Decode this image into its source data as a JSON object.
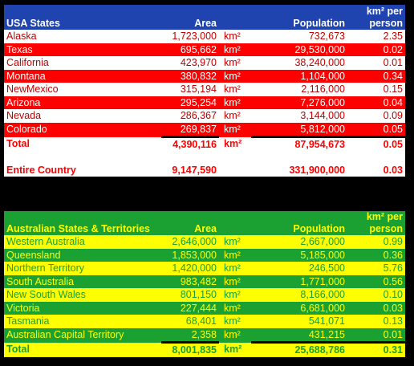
{
  "usa": {
    "header": {
      "name": "USA States",
      "area": "Area",
      "population": "Population",
      "km_line1": "km² per",
      "km_line2": "person"
    },
    "rows": [
      {
        "name": "Alaska",
        "area": "1,723,000",
        "unit": "km²",
        "population": "732,673",
        "km": "2.35",
        "style": "w"
      },
      {
        "name": "Texas",
        "area": "695,662",
        "unit": "km²",
        "population": "29,530,000",
        "km": "0.02",
        "style": "r"
      },
      {
        "name": "California",
        "area": "423,970",
        "unit": "km²",
        "population": "38,240,000",
        "km": "0.01",
        "style": "w"
      },
      {
        "name": "Montana",
        "area": "380,832",
        "unit": "km²",
        "population": "1,104,000",
        "km": "0.34",
        "style": "r"
      },
      {
        "name": "NewMexico",
        "area": "315,194",
        "unit": "km²",
        "population": "2,116,000",
        "km": "0.15",
        "style": "w"
      },
      {
        "name": "Arizona",
        "area": "295,254",
        "unit": "km²",
        "population": "7,276,000",
        "km": "0.04",
        "style": "r"
      },
      {
        "name": "Nevada",
        "area": "286,367",
        "unit": "km²",
        "population": "3,144,000",
        "km": "0.09",
        "style": "w"
      },
      {
        "name": "Colorado",
        "area": "269,837",
        "unit": "km²",
        "population": "5,812,000",
        "km": "0.05",
        "style": "r"
      }
    ],
    "total": {
      "name": "Total",
      "area": "4,390,116",
      "unit": "km²",
      "population": "87,954,673",
      "km": "0.05"
    },
    "country": {
      "name": "Entire Country",
      "area": "9,147,590",
      "population": "331,900,000",
      "km": "0.03"
    }
  },
  "aus": {
    "header": {
      "name": "Australian States & Territories",
      "area": "Area",
      "population": "Population",
      "km_line1": "km² per",
      "km_line2": "person"
    },
    "rows": [
      {
        "name": "Western Australia",
        "area": "2,646,000",
        "unit": "km²",
        "population": "2,667,000",
        "km": "0.99",
        "style": "y"
      },
      {
        "name": "Queensland",
        "area": "1,853,000",
        "unit": "km²",
        "population": "5,185,000",
        "km": "0.36",
        "style": "g"
      },
      {
        "name": "Northern Territory",
        "area": "1,420,000",
        "unit": "km²",
        "population": "246,500",
        "km": "5.76",
        "style": "y"
      },
      {
        "name": "South Australia",
        "area": "983,482",
        "unit": "km²",
        "population": "1,771,000",
        "km": "0.56",
        "style": "g"
      },
      {
        "name": "New South Wales",
        "area": "801,150",
        "unit": "km²",
        "population": "8,166,000",
        "km": "0.10",
        "style": "y"
      },
      {
        "name": "Victoria",
        "area": "227,444",
        "unit": "km²",
        "population": "6,681,000",
        "km": "0.03",
        "style": "g"
      },
      {
        "name": "Tasmania",
        "area": "68,401",
        "unit": "km²",
        "population": "541,071",
        "km": "0.13",
        "style": "y"
      },
      {
        "name": "Australian Capital Territory",
        "area": "2,358",
        "unit": "km²",
        "population": "431,215",
        "km": "0.01",
        "style": "g"
      }
    ],
    "total": {
      "name": "Total",
      "area": "8,001,835",
      "unit": "km²",
      "population": "25,688,786",
      "km": "0.31"
    }
  }
}
